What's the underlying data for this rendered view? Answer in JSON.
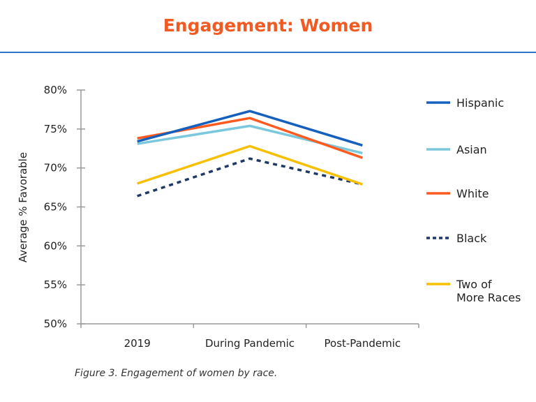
{
  "title": "Engagement: Women",
  "caption": "Figure 3. Engagement of women by race.",
  "chart_data": {
    "type": "line",
    "title": "Engagement: Women",
    "xlabel": "",
    "ylabel": "Average % Favorable",
    "categories": [
      "2019",
      "During Pandemic",
      "Post-Pandemic"
    ],
    "ylim": [
      50,
      80
    ],
    "yticks": [
      "50%",
      "55%",
      "60%",
      "65%",
      "70%",
      "75%",
      "80%"
    ],
    "grid": false,
    "legend_position": "right",
    "series": [
      {
        "name": "Hispanic",
        "values": [
          73.4,
          77.3,
          72.9
        ],
        "color": "#1560BD",
        "dash": false
      },
      {
        "name": "Asian",
        "values": [
          73.1,
          75.4,
          71.9
        ],
        "color": "#7BC8DC",
        "dash": false
      },
      {
        "name": "White",
        "values": [
          73.8,
          76.4,
          71.3
        ],
        "color": "#FF5A1F",
        "dash": false
      },
      {
        "name": "Black",
        "values": [
          66.4,
          71.2,
          67.9
        ],
        "color": "#1F3864",
        "dash": true
      },
      {
        "name": "Two of More Races",
        "values": [
          68.0,
          72.8,
          67.9
        ],
        "color": "#F6C000",
        "dash": false
      }
    ]
  }
}
